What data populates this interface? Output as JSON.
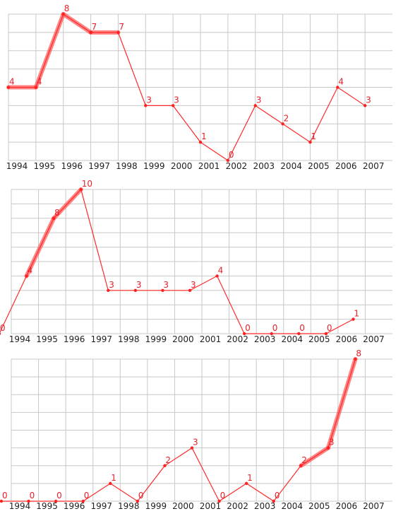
{
  "chart_data": [
    {
      "type": "line",
      "x": [
        "1994",
        "1995",
        "1996",
        "1997",
        "1998",
        "1999",
        "2000",
        "2001",
        "2002",
        "2003",
        "2004",
        "2005",
        "2006",
        "2007"
      ],
      "values": [
        4,
        4,
        8,
        7,
        7,
        3,
        3,
        1,
        0,
        3,
        2,
        1,
        4,
        3
      ],
      "ylim": [
        0,
        8
      ],
      "grid": true,
      "highlighted_segments": [
        [
          0,
          1
        ],
        [
          1,
          2
        ],
        [
          2,
          3
        ],
        [
          3,
          4
        ]
      ],
      "colors": {
        "line": "#ff2a2a",
        "highlight": "#ff5a5a",
        "label": "#e8202a"
      }
    },
    {
      "type": "line",
      "x": [
        "1994",
        "1995",
        "1996",
        "1997",
        "1998",
        "1999",
        "2000",
        "2001",
        "2002",
        "2003",
        "2004",
        "2005",
        "2006",
        "2007"
      ],
      "values": [
        0,
        4,
        8,
        10,
        3,
        3,
        3,
        3,
        4,
        0,
        0,
        0,
        0,
        1
      ],
      "ylim": [
        0,
        10
      ],
      "grid": true,
      "highlighted_segments": [
        [
          1,
          2
        ],
        [
          2,
          3
        ]
      ],
      "colors": {
        "line": "#ff2a2a",
        "highlight": "#ff5a5a",
        "label": "#e8202a"
      }
    },
    {
      "type": "line",
      "x": [
        "1994",
        "1995",
        "1996",
        "1997",
        "1998",
        "1999",
        "2000",
        "2001",
        "2002",
        "2003",
        "2004",
        "2005",
        "2006",
        "2007"
      ],
      "values": [
        0,
        0,
        0,
        0,
        1,
        0,
        2,
        3,
        0,
        1,
        0,
        2,
        3,
        8
      ],
      "ylim": [
        0,
        8
      ],
      "grid": true,
      "highlighted_segments": [
        [
          11,
          12
        ],
        [
          12,
          13
        ]
      ],
      "colors": {
        "line": "#ff2a2a",
        "highlight": "#ff5a5a",
        "label": "#e8202a"
      }
    }
  ]
}
